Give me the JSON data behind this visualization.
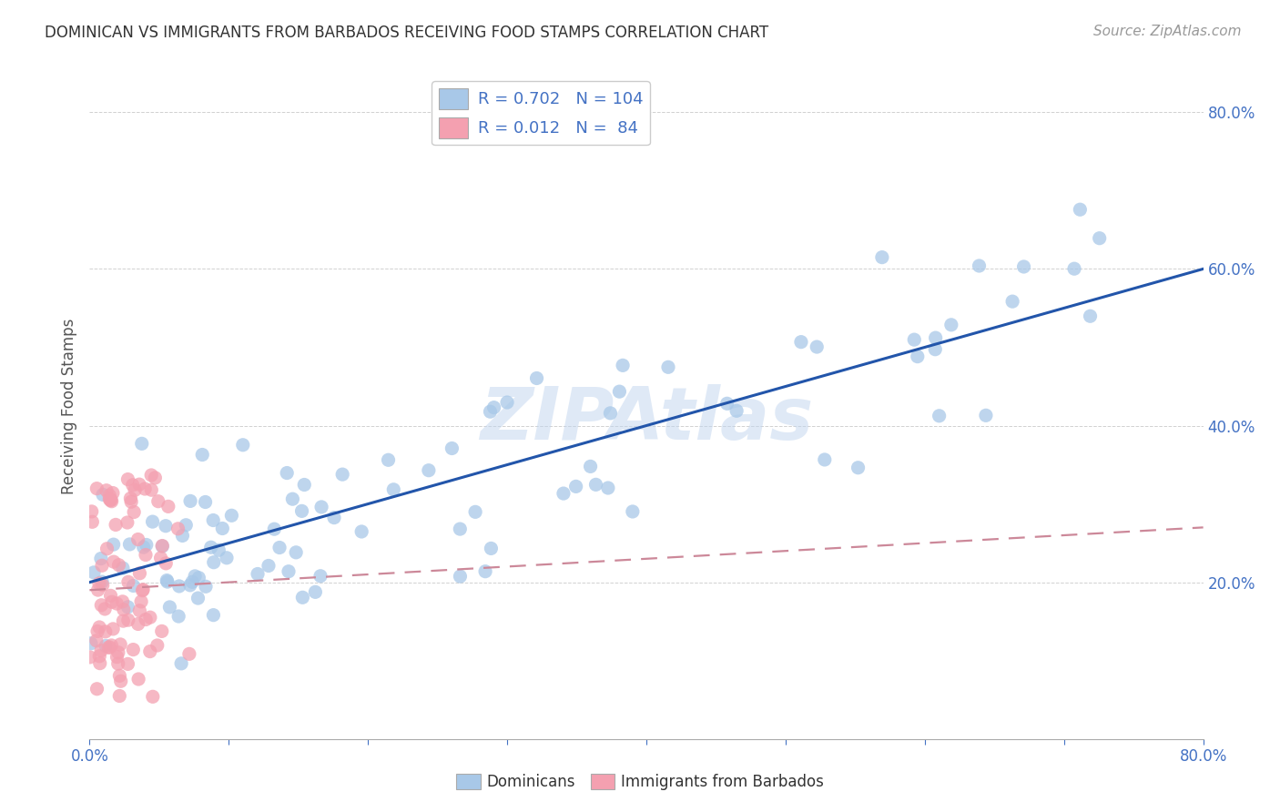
{
  "title": "DOMINICAN VS IMMIGRANTS FROM BARBADOS RECEIVING FOOD STAMPS CORRELATION CHART",
  "source": "Source: ZipAtlas.com",
  "ylabel": "Receiving Food Stamps",
  "legend_label1": "Dominicans",
  "legend_label2": "Immigrants from Barbados",
  "R1": 0.702,
  "N1": 104,
  "R2": 0.012,
  "N2": 84,
  "color_blue": "#a8c8e8",
  "color_pink": "#f4a0b0",
  "line_blue": "#2255aa",
  "line_pink": "#cc8899",
  "watermark": "ZIPAtlas",
  "xmin": 0.0,
  "xmax": 0.8,
  "ymin": 0.0,
  "ymax": 0.85,
  "blue_line_x0": 0.0,
  "blue_line_y0": 0.2,
  "blue_line_x1": 0.8,
  "blue_line_y1": 0.6,
  "pink_line_x0": 0.0,
  "pink_line_y0": 0.19,
  "pink_line_x1": 0.8,
  "pink_line_y1": 0.27
}
